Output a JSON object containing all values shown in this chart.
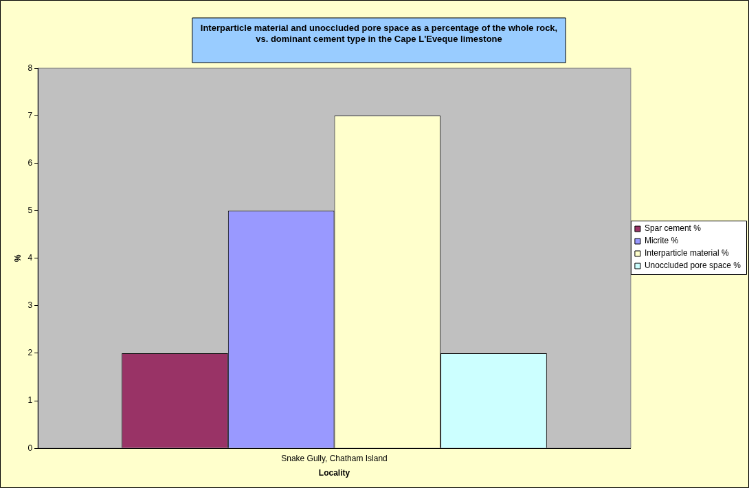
{
  "chart_data": {
    "type": "bar",
    "title": [
      "Interparticle material and unoccluded pore space as a percentage of the whole rock,",
      "vs. dominant cement type in the Cape L'Eveque limestone"
    ],
    "xlabel": "Locality",
    "ylabel": "%",
    "categories": [
      "Snake Gully, Chatham Island"
    ],
    "series": [
      {
        "name": "Spar cement %",
        "color": "#993366",
        "values": [
          2
        ]
      },
      {
        "name": "Micrite %",
        "color": "#9999ff",
        "values": [
          5
        ]
      },
      {
        "name": "Interparticle material %",
        "color": "#ffffcc",
        "values": [
          7
        ]
      },
      {
        "name": "Unoccluded pore space %",
        "color": "#ccffff",
        "values": [
          2
        ]
      }
    ],
    "ylim": [
      0,
      8
    ],
    "yticks": [
      0,
      1,
      2,
      3,
      4,
      5,
      6,
      7,
      8
    ],
    "grid": false,
    "legend": "right"
  }
}
